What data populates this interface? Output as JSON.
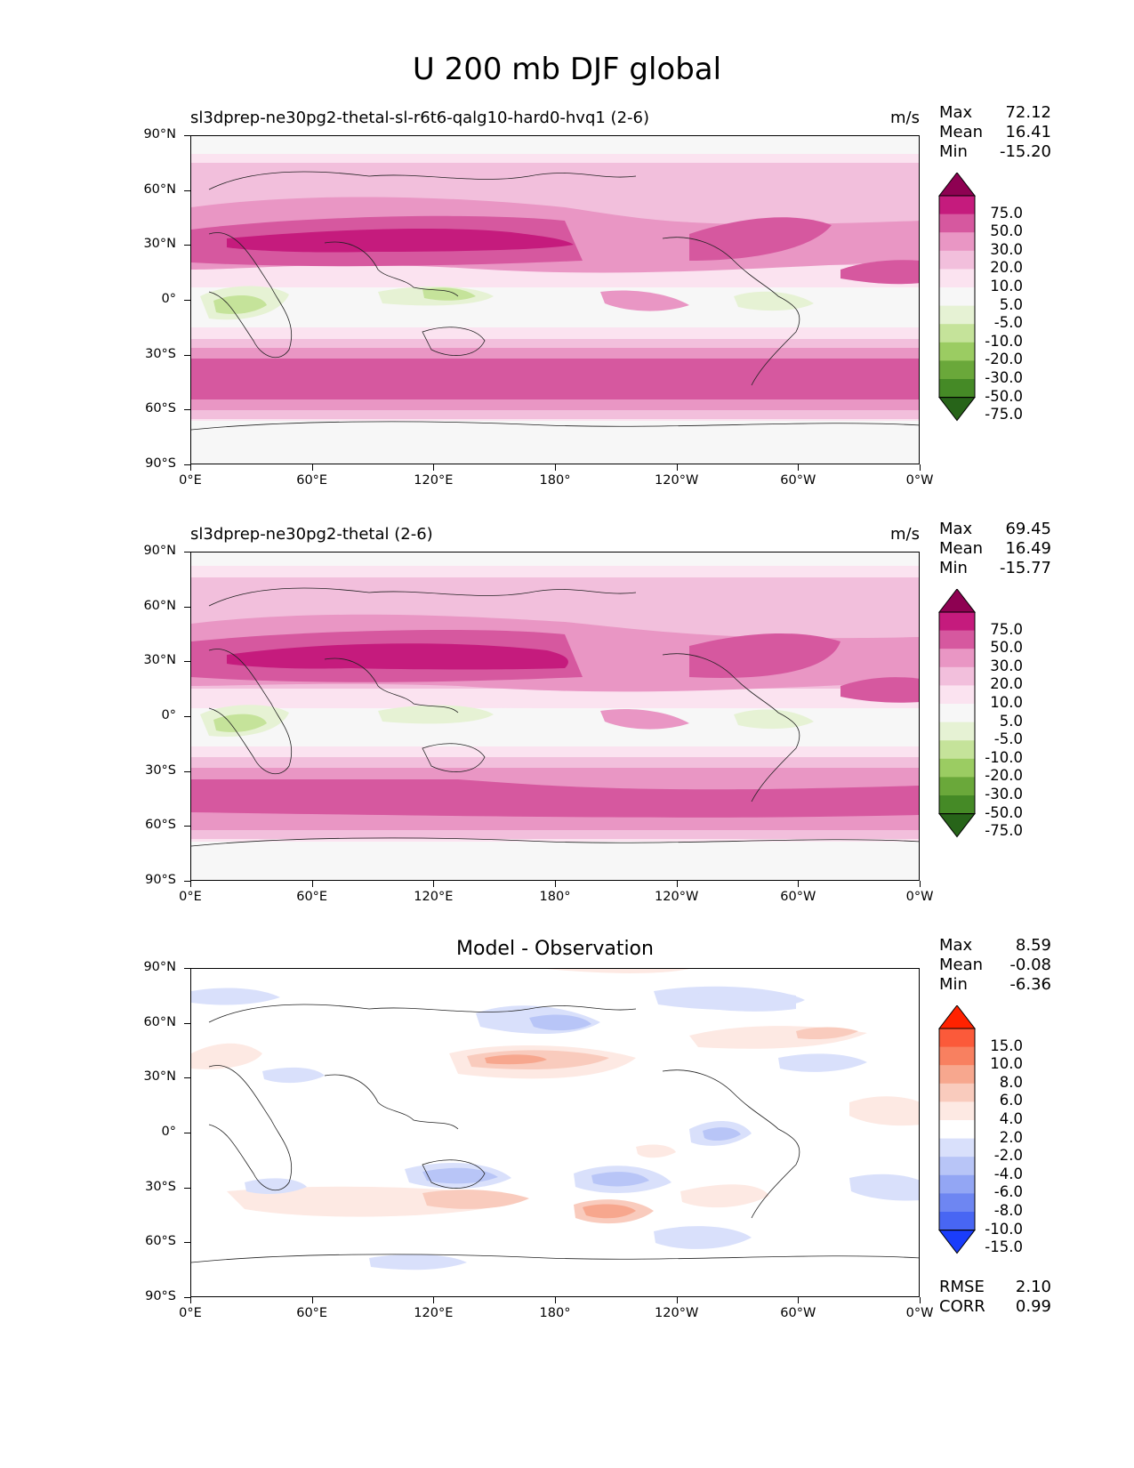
{
  "suptitle": "U 200 mb DJF global",
  "panels": [
    {
      "title": "sl3dprep-ne30pg2-thetal-sl-r6t6-qalg10-hard0-hvq1 (2-6)",
      "units": "m/s",
      "stats": {
        "max_label": "Max",
        "max": "72.12",
        "mean_label": "Mean",
        "mean": "16.41",
        "min_label": "Min",
        "min": "-15.20"
      },
      "colorbar": {
        "labels": [
          "75.0",
          "50.0",
          "30.0",
          "20.0",
          "10.0",
          "5.0",
          "-5.0",
          "-10.0",
          "-20.0",
          "-30.0",
          "-50.0",
          "-75.0"
        ],
        "colors": [
          "#8e0152",
          "#c51b7d",
          "#d6589f",
          "#e996c4",
          "#f2bfdc",
          "#fbe3f0",
          "#f7f7f7",
          "#e6f2d4",
          "#c5e39a",
          "#9bcc62",
          "#6aa83a",
          "#458a26",
          "#276419"
        ]
      }
    },
    {
      "title": "sl3dprep-ne30pg2-thetal (2-6)",
      "units": "m/s",
      "stats": {
        "max_label": "Max",
        "max": "69.45",
        "mean_label": "Mean",
        "mean": "16.49",
        "min_label": "Min",
        "min": "-15.77"
      },
      "colorbar": {
        "labels": [
          "75.0",
          "50.0",
          "30.0",
          "20.0",
          "10.0",
          "5.0",
          "-5.0",
          "-10.0",
          "-20.0",
          "-30.0",
          "-50.0",
          "-75.0"
        ],
        "colors": [
          "#8e0152",
          "#c51b7d",
          "#d6589f",
          "#e996c4",
          "#f2bfdc",
          "#fbe3f0",
          "#f7f7f7",
          "#e6f2d4",
          "#c5e39a",
          "#9bcc62",
          "#6aa83a",
          "#458a26",
          "#276419"
        ]
      }
    },
    {
      "title": "Model - Observation",
      "units": "",
      "stats": {
        "max_label": "Max",
        "max": "8.59",
        "mean_label": "Mean",
        "mean": "-0.08",
        "min_label": "Min",
        "min": "-6.36"
      },
      "colorbar": {
        "labels": [
          "15.0",
          "10.0",
          "8.0",
          "6.0",
          "4.0",
          "2.0",
          "-2.0",
          "-4.0",
          "-6.0",
          "-8.0",
          "-10.0",
          "-15.0"
        ],
        "colors": [
          "#ff2200",
          "#fb5a3a",
          "#f88060",
          "#f7a78e",
          "#f9cbbd",
          "#fde9e3",
          "#ffffff",
          "#d9e0fb",
          "#b8c5f7",
          "#93a6f4",
          "#6e86f2",
          "#4866f3",
          "#1a3dfb"
        ]
      },
      "rmse_label": "RMSE",
      "rmse": "2.10",
      "corr_label": "CORR",
      "corr": "0.99"
    }
  ],
  "axes": {
    "y_ticks": [
      "90°N",
      "60°N",
      "30°N",
      "0°",
      "30°S",
      "60°S",
      "90°S"
    ],
    "x_ticks": [
      "0°E",
      "60°E",
      "120°E",
      "180°",
      "120°W",
      "60°W",
      "0°W"
    ]
  }
}
